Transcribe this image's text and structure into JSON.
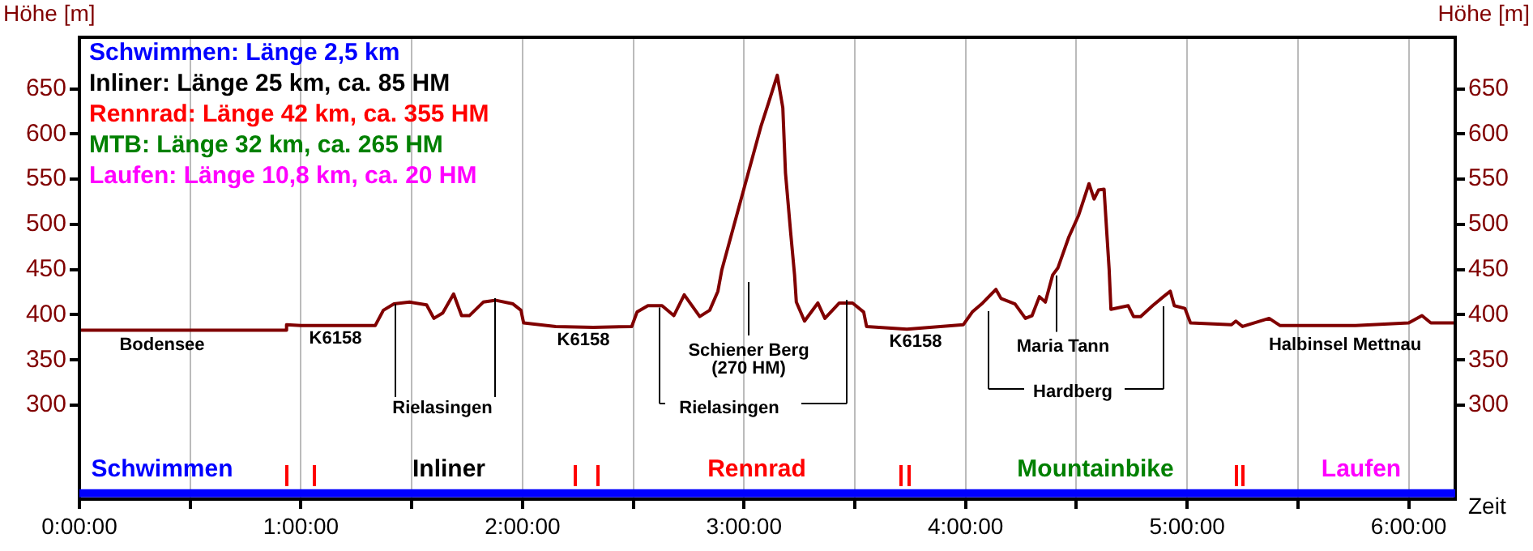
{
  "chart_data": {
    "type": "line",
    "xlabel": "Zeit",
    "ylabel": "Höhe [m]",
    "y2label": "Höhe [m]",
    "x": [
      0,
      0.93,
      0.935,
      1.0,
      1.335,
      1.372,
      1.42,
      1.49,
      1.567,
      1.6,
      1.64,
      1.689,
      1.725,
      1.76,
      1.823,
      1.88,
      1.957,
      1.993,
      2.005,
      2.15,
      2.32,
      2.493,
      2.517,
      2.566,
      2.63,
      2.683,
      2.73,
      2.8,
      2.845,
      2.882,
      2.9,
      3.077,
      3.11,
      3.15,
      3.175,
      3.187,
      3.21,
      3.228,
      3.236,
      3.273,
      3.333,
      3.365,
      3.43,
      3.49,
      3.54,
      3.553,
      3.735,
      3.99,
      4.03,
      4.077,
      4.137,
      4.16,
      4.223,
      4.27,
      4.3,
      4.333,
      4.36,
      4.393,
      4.417,
      4.466,
      4.51,
      4.557,
      4.58,
      4.6,
      4.625,
      4.637,
      4.648,
      4.656,
      4.734,
      4.758,
      4.79,
      4.844,
      4.893,
      4.924,
      4.942,
      4.99,
      5.015,
      5.2,
      5.22,
      5.25,
      5.37,
      5.42,
      5.76,
      6.0,
      6.06,
      6.1,
      6.205
    ],
    "series": [
      {
        "color": "#800000",
        "values": [
          383,
          383,
          389,
          388,
          388,
          405,
          412,
          414,
          411,
          396,
          402,
          423,
          399,
          399,
          414,
          416,
          412,
          405,
          391,
          387,
          386,
          387,
          403,
          410,
          410,
          399,
          422,
          398,
          405,
          426,
          450,
          609,
          634,
          665,
          629,
          557,
          492,
          444,
          414,
          393,
          413,
          396,
          413,
          413,
          403,
          387,
          384,
          389,
          403,
          413,
          428,
          418,
          412,
          396,
          399,
          420,
          414,
          444,
          452,
          486,
          510,
          545,
          528,
          538,
          539,
          492,
          450,
          406,
          410,
          398,
          398,
          410,
          420,
          426,
          410,
          407,
          391,
          389,
          393,
          387,
          396,
          388,
          388,
          391,
          399,
          391,
          391
        ]
      }
    ],
    "xlim": [
      0,
      6.21
    ],
    "xticks": [
      {
        "value": 0,
        "label": "0:00:00"
      },
      {
        "value": 0.5,
        "label": null
      },
      {
        "value": 1,
        "label": "1:00:00"
      },
      {
        "value": 1.5,
        "label": null
      },
      {
        "value": 2,
        "label": "2:00:00"
      },
      {
        "value": 2.5,
        "label": null
      },
      {
        "value": 3,
        "label": "3:00:00"
      },
      {
        "value": 3.5,
        "label": null
      },
      {
        "value": 4,
        "label": "4:00:00"
      },
      {
        "value": 4.5,
        "label": null
      },
      {
        "value": 5,
        "label": "5:00:00"
      },
      {
        "value": 5.5,
        "label": null
      },
      {
        "value": 6,
        "label": "6:00:00"
      }
    ],
    "ylim": [
      196,
      707
    ],
    "yticks": [
      300,
      350,
      400,
      450,
      500,
      550,
      600,
      650
    ],
    "y2lim": [
      196,
      707
    ],
    "y2ticks": [
      300,
      350,
      400,
      450,
      500,
      550,
      600,
      650
    ],
    "grid": "x",
    "legend": false,
    "marker": "none",
    "line_style": "solid",
    "bands": [
      {
        "axis": "y",
        "from": 198,
        "to": 207,
        "color": "#0000ff"
      }
    ],
    "annotations": [
      "Schwimmen: Länge 2,5 km",
      "Inliner: Länge 25 km, ca. 85 HM",
      "Rennrad: Länge 42 km, ca. 355 HM",
      "MTB: Länge 32 km, ca. 265 HM",
      "Laufen: Länge 10,8 km, ca. 20 HM",
      "Schwimmen",
      "Inliner",
      "Rennrad",
      "Mountainbike",
      "Laufen",
      "Bodensee",
      "K6158",
      {
        "text": "Rielasingen",
        "x": 1.42,
        "y": 412
      },
      "K6158",
      {
        "text": "Rielasingen",
        "x": 2.61,
        "y": 408
      },
      "Schiener Berg\n(270 HM)",
      "K6158",
      {
        "text": "Maria Tann",
        "x": 4.4,
        "y": 443
      },
      "Hardberg",
      "Halbinsel Mettnau"
    ]
  }
}
